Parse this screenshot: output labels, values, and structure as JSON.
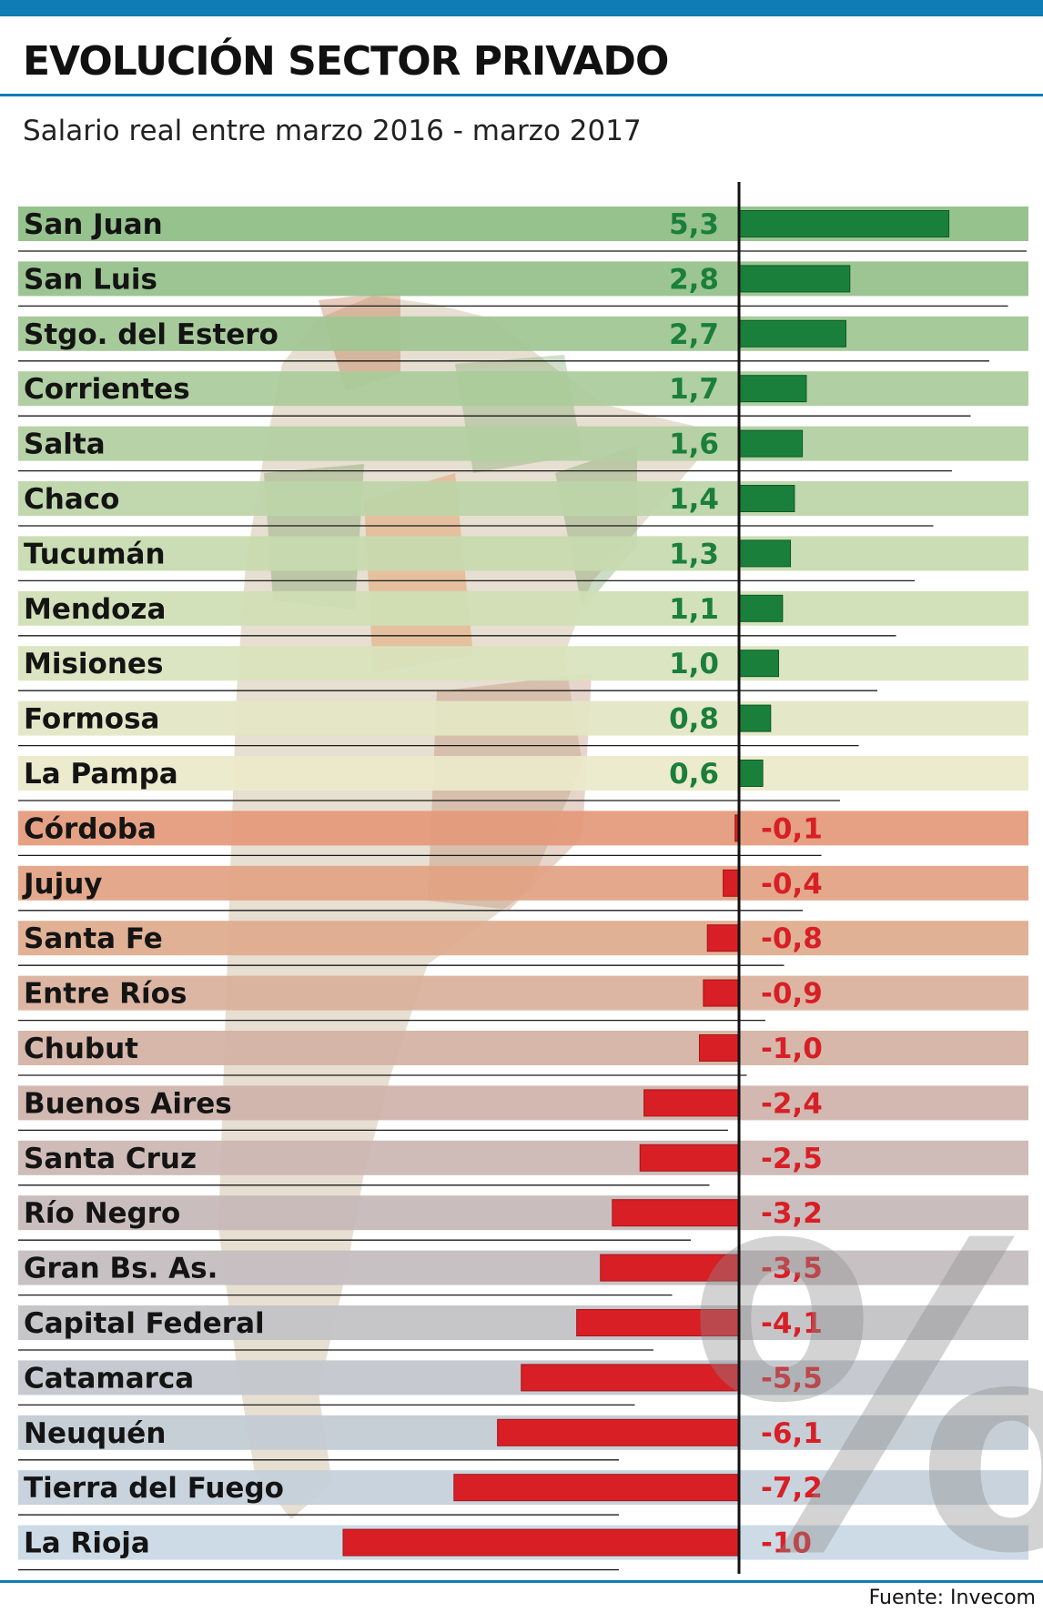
{
  "title": "EVOLUCIÓN SECTOR PRIVADO",
  "subtitle": "Salario real entre marzo 2016 - marzo 2017",
  "source": "Fuente: Invecom",
  "watermark": "%",
  "colors": {
    "accent_blue": "#0f7cb5",
    "positive_bar": "#1a7f3a",
    "negative_bar": "#d81f26",
    "positive_value": "#1a7f3a",
    "negative_value": "#d81f26"
  },
  "chart_data": {
    "type": "bar",
    "orientation": "horizontal",
    "title": "EVOLUCIÓN SECTOR PRIVADO",
    "subtitle": "Salario real entre marzo 2016 - marzo 2017",
    "unit": "%",
    "baseline": 0,
    "categories": [
      "San Juan",
      "San Luis",
      "Stgo. del Estero",
      "Corrientes",
      "Salta",
      "Chaco",
      "Tucumán",
      "Mendoza",
      "Misiones",
      "Formosa",
      "La Pampa",
      "Córdoba",
      "Jujuy",
      "Santa Fe",
      "Entre Ríos",
      "Chubut",
      "Buenos Aires",
      "Santa Cruz",
      "Río Negro",
      "Gran Bs. As.",
      "Capital Federal",
      "Catamarca",
      "Neuquén",
      "Tierra del Fuego",
      "La Rioja"
    ],
    "values": [
      5.3,
      2.8,
      2.7,
      1.7,
      1.6,
      1.4,
      1.3,
      1.1,
      1.0,
      0.8,
      0.6,
      -0.1,
      -0.4,
      -0.8,
      -0.9,
      -1.0,
      -2.4,
      -2.5,
      -3.2,
      -3.5,
      -4.1,
      -5.5,
      -6.1,
      -7.2,
      -10
    ],
    "value_labels": [
      "5,3",
      "2,8",
      "2,7",
      "1,7",
      "1,6",
      "1,4",
      "1,3",
      "1,1",
      "1,0",
      "0,8",
      "0,6",
      "-0,1",
      "-0,4",
      "-0,8",
      "-0,9",
      "-1,0",
      "-2,4",
      "-2,5",
      "-3,2",
      "-3,5",
      "-4,1",
      "-5,5",
      "-6,1",
      "-7,2",
      "-10"
    ],
    "band_colors": [
      "#8ebd85",
      "#96c18b",
      "#a0c693",
      "#aacb9b",
      "#b3cfa1",
      "#bcd4a8",
      "#c7daae",
      "#d0dfb5",
      "#d9e3bc",
      "#e3e6c4",
      "#ece9ca",
      "#e4997a",
      "#e2a283",
      "#dfab8e",
      "#d9b09b",
      "#d3b2a4",
      "#cfb3aa",
      "#cbb6b2",
      "#c6b8b8",
      "#c4bcbf",
      "#c2c2c5",
      "#c2c6cc",
      "#c2cad3",
      "#c4d0da",
      "#c8d8e4"
    ],
    "grid": false,
    "legend": "none"
  }
}
